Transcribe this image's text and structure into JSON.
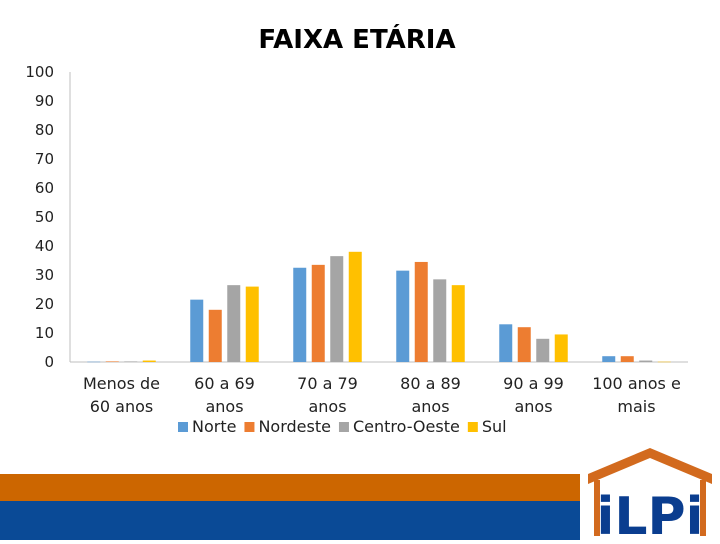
{
  "chart_data": {
    "type": "bar",
    "title": "FAIXA ETÁRIA",
    "categories": [
      [
        "Menos de",
        "60 anos"
      ],
      [
        "60 a 69",
        "anos"
      ],
      [
        "70 a 79",
        "anos"
      ],
      [
        "80 a 89",
        "anos"
      ],
      [
        "90 a 99",
        "anos"
      ],
      [
        "100 anos e",
        "mais"
      ]
    ],
    "series": [
      {
        "name": "Norte",
        "color": "#5B9BD5",
        "values": [
          0.1,
          21.5,
          32.5,
          31.5,
          13,
          2
        ]
      },
      {
        "name": "Nordeste",
        "color": "#ED7D31",
        "values": [
          0.2,
          18,
          33.5,
          34.5,
          12,
          2
        ]
      },
      {
        "name": "Centro-Oeste",
        "color": "#A5A5A5",
        "values": [
          0.2,
          26.5,
          36.5,
          28.5,
          8,
          0.5
        ]
      },
      {
        "name": "Sul",
        "color": "#FFC000",
        "values": [
          0.5,
          26,
          38,
          26.5,
          9.5,
          0.1
        ]
      }
    ],
    "yticks": [
      0,
      10,
      20,
      30,
      40,
      50,
      60,
      70,
      80,
      90,
      100
    ],
    "ylim": [
      0,
      100
    ],
    "legend_position": "bottom"
  },
  "footer": {
    "orange_color": "#CC6600",
    "blue_color": "#0A4A96",
    "logo_text": "iLPi",
    "logo_color": "#0A3D8F",
    "roof_color": "#D26A1E"
  }
}
